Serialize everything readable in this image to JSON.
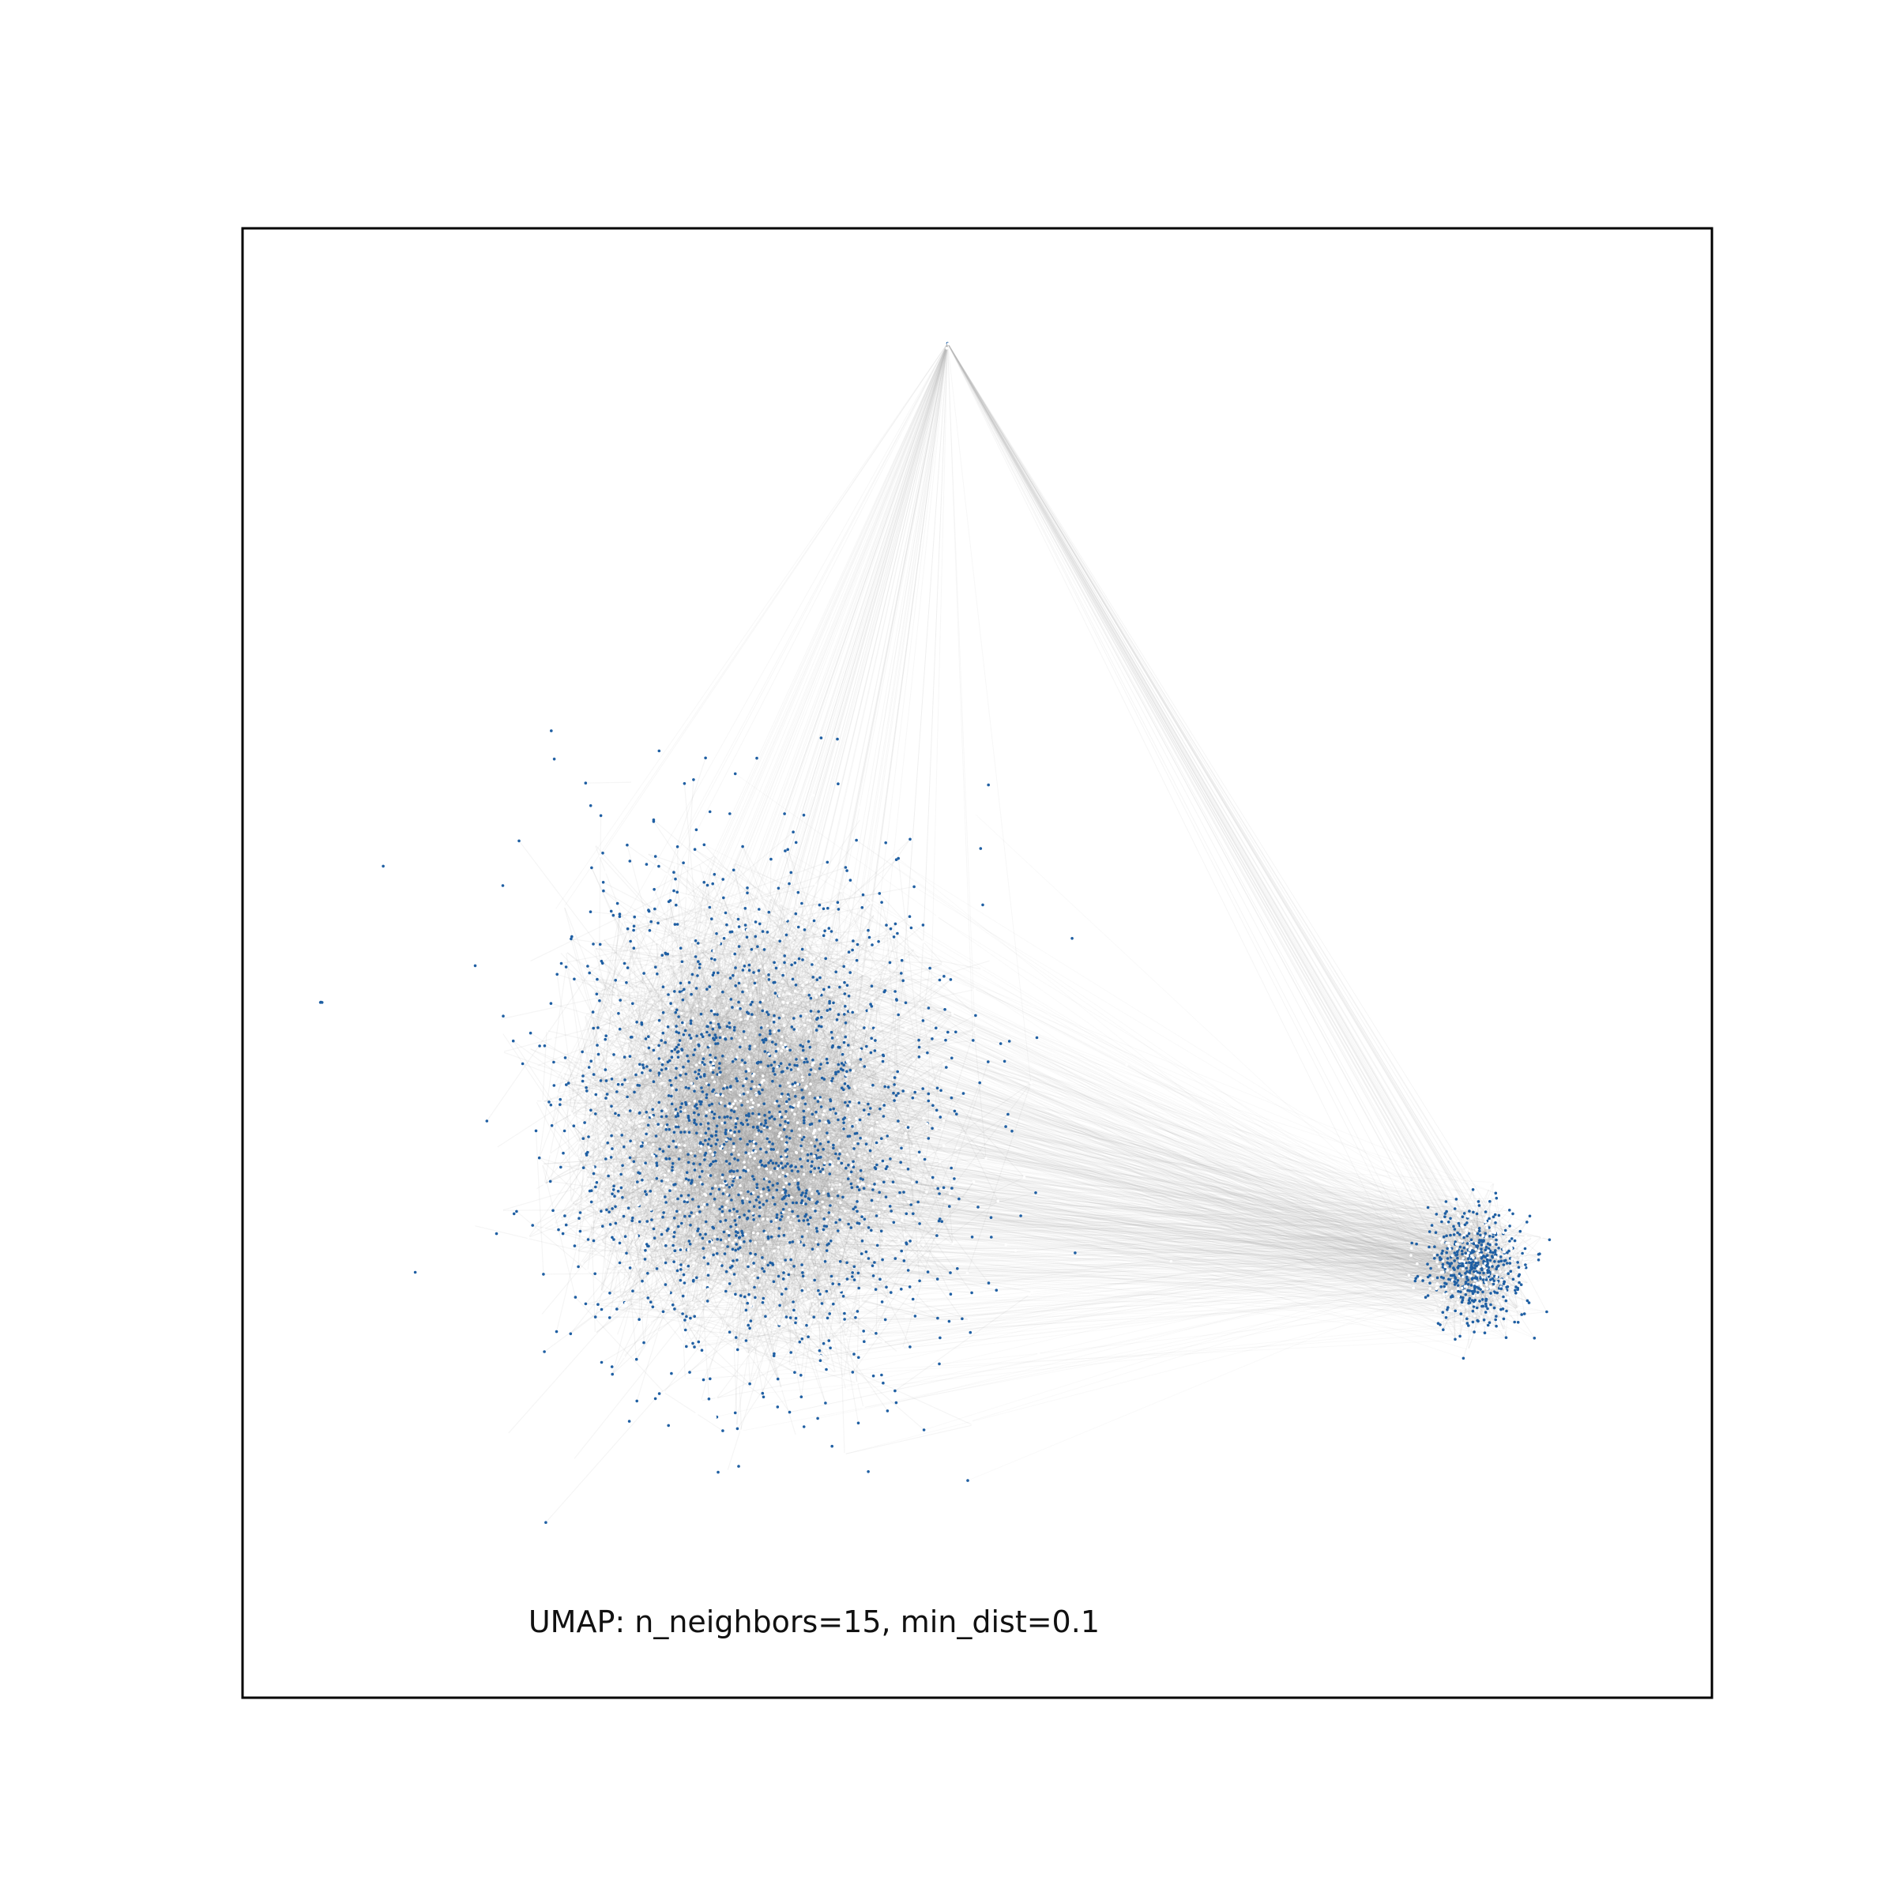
{
  "chart_data": {
    "type": "scatter",
    "subtype": "umap-connectivity-plot",
    "annotation": "UMAP: n_neighbors=15, min_dist=0.1",
    "axes_visible": false,
    "grid": false,
    "point_color": "#1f5fa3",
    "edge_color": "#9a9a9a",
    "frame_color": "#000000",
    "background": "#ffffff",
    "clusters": [
      {
        "shape": "main-mass",
        "center": [
          5.2,
          4.8
        ],
        "spread": [
          1.9,
          2.4
        ],
        "density": "high"
      },
      {
        "shape": "satellite-blob",
        "center": [
          12.6,
          3.4
        ],
        "spread": [
          0.45,
          0.55
        ],
        "density": "high"
      },
      {
        "shape": "apex-point",
        "center": [
          7.2,
          12.8
        ],
        "spread": [
          0.02,
          0.05
        ],
        "density": "low"
      },
      {
        "shape": "outlier-left",
        "center": [
          0.8,
          6.1
        ],
        "spread": [
          0.02,
          0.02
        ],
        "density": "low"
      }
    ],
    "xlim": [
      0,
      15
    ],
    "ylim": [
      -1,
      14
    ]
  }
}
